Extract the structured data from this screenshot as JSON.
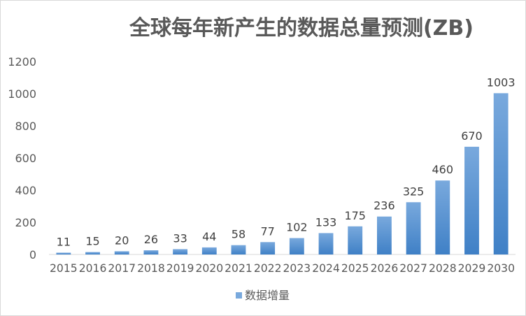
{
  "chart_data": {
    "type": "bar",
    "title": "全球每年新产生的数据总量预测(ZB)",
    "categories": [
      "2015",
      "2016",
      "2017",
      "2018",
      "2019",
      "2020",
      "2021",
      "2022",
      "2023",
      "2024",
      "2025",
      "2026",
      "2027",
      "2028",
      "2029",
      "2030"
    ],
    "series": [
      {
        "name": "数据增量",
        "values": [
          11,
          15,
          20,
          26,
          33,
          44,
          58,
          77,
          102,
          133,
          175,
          236,
          325,
          460,
          670,
          1003
        ],
        "color_top": "#79a9dd",
        "color_bottom": "#3f80c6"
      }
    ],
    "y_ticks": [
      "0",
      "200",
      "400",
      "600",
      "800",
      "1000",
      "1200"
    ],
    "ylim": [
      0,
      1200
    ],
    "grid": false,
    "legend_position": "bottom"
  }
}
